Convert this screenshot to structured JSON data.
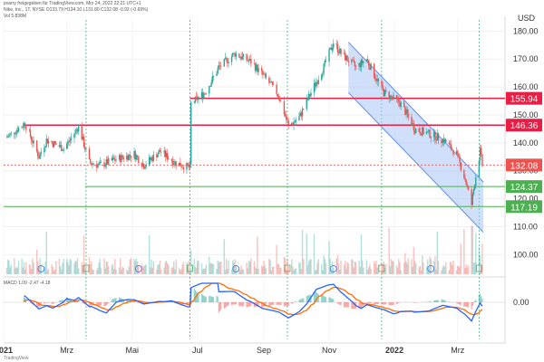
{
  "header": {
    "publisher": "pvarry freigegeben für TradingView.com, Mrz 24, 2022 22:21 UTC+1",
    "symbol": "Nike, Inc., 1T, NYSE",
    "ohlc": "O133.79 H134.10 L131.80 C132.08 -0.92 (-0.69%)",
    "volume": "Vol 5.838M"
  },
  "indicator": {
    "label": "MACD 1.09 -2.47 -4.18"
  },
  "footer": {
    "brand": "TradingView"
  },
  "colors": {
    "up": "#26a69a",
    "down": "#ef5350",
    "resistance": "#e91e44",
    "support": "#4caf50",
    "channel_fill": "#a9c4f5",
    "channel_stroke": "#5b8def",
    "macd_line": "#2962ff",
    "signal_line": "#ff6d00",
    "current_price_bg": "#ef5350"
  },
  "chart_data": {
    "type": "candlestick",
    "currency": "USD",
    "y_ticks": [
      100,
      110,
      120,
      130,
      140,
      150,
      160,
      170,
      180
    ],
    "ylim": [
      93,
      184
    ],
    "x_labels": [
      "2021",
      "Mrz",
      "Mai",
      "Jul",
      "Sep",
      "Nov",
      "2022",
      "Mrz"
    ],
    "x_range": [
      "2021-01-01",
      "2022-04-10"
    ],
    "horizontal_levels": [
      {
        "price": 155.94,
        "label": "155.94",
        "kind": "resistance"
      },
      {
        "price": 146.36,
        "label": "146.36",
        "kind": "resistance"
      },
      {
        "price": 124.37,
        "label": "124.37",
        "kind": "support"
      },
      {
        "price": 117.19,
        "label": "117.19",
        "kind": "support"
      }
    ],
    "current_price": {
      "price": 132.08,
      "label": "132.08"
    },
    "descending_channel": {
      "start_date": "2021-11-19",
      "end_date": "2022-03-25",
      "upper": [
        176,
        126
      ],
      "lower": [
        158,
        108
      ]
    },
    "price_path": [
      [
        "2021-01-04",
        142
      ],
      [
        "2021-01-21",
        147
      ],
      [
        "2021-02-03",
        135
      ],
      [
        "2021-02-10",
        141
      ],
      [
        "2021-02-26",
        138
      ],
      [
        "2021-03-04",
        141
      ],
      [
        "2021-03-12",
        146
      ],
      [
        "2021-03-22",
        133
      ],
      [
        "2021-04-01",
        132
      ],
      [
        "2021-04-15",
        134
      ],
      [
        "2021-05-03",
        136
      ],
      [
        "2021-05-12",
        132
      ],
      [
        "2021-05-27",
        137
      ],
      [
        "2021-06-10",
        133
      ],
      [
        "2021-06-24",
        131
      ],
      [
        "2021-06-25",
        154
      ],
      [
        "2021-07-08",
        158
      ],
      [
        "2021-07-21",
        167
      ],
      [
        "2021-08-05",
        172
      ],
      [
        "2021-08-20",
        169
      ],
      [
        "2021-09-03",
        163
      ],
      [
        "2021-09-15",
        157
      ],
      [
        "2021-09-24",
        146
      ],
      [
        "2021-10-04",
        149
      ],
      [
        "2021-10-15",
        158
      ],
      [
        "2021-10-28",
        168
      ],
      [
        "2021-11-05",
        176
      ],
      [
        "2021-11-12",
        172
      ],
      [
        "2021-11-26",
        167
      ],
      [
        "2021-12-06",
        170
      ],
      [
        "2021-12-15",
        163
      ],
      [
        "2021-12-22",
        158
      ],
      [
        "2022-01-07",
        154
      ],
      [
        "2022-01-20",
        145
      ],
      [
        "2022-02-04",
        143
      ],
      [
        "2022-02-16",
        141
      ],
      [
        "2022-02-28",
        136
      ],
      [
        "2022-03-08",
        127
      ],
      [
        "2022-03-14",
        118
      ],
      [
        "2022-03-17",
        126
      ],
      [
        "2022-03-22",
        137
      ],
      [
        "2022-03-24",
        132
      ]
    ]
  }
}
